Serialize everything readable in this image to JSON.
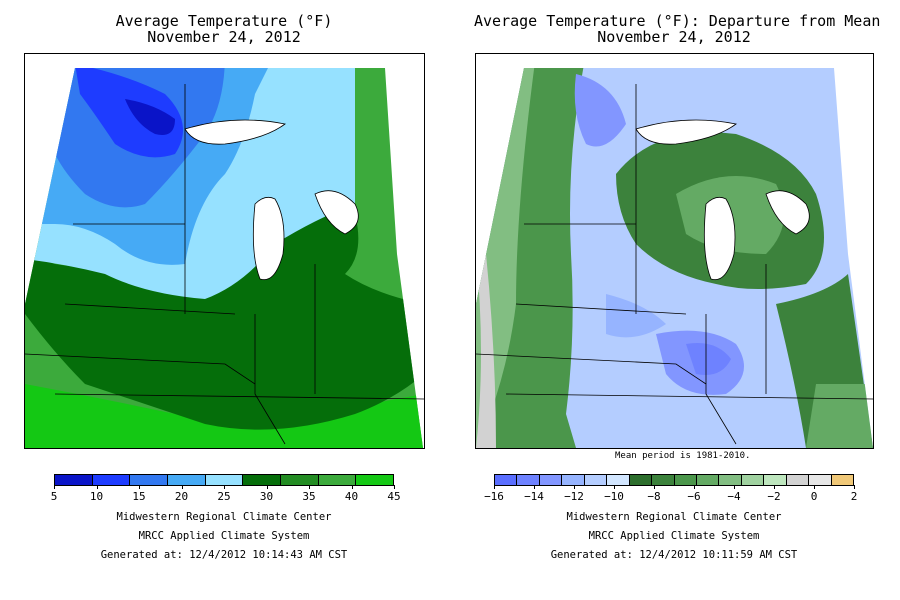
{
  "left": {
    "title_line1": "Average Temperature (°F)",
    "title_line2": "November 24, 2012",
    "legend": {
      "colors": [
        "#0a14c8",
        "#1e3cff",
        "#3278f0",
        "#46aaf5",
        "#96e1ff",
        "#056e0a",
        "#238c23",
        "#3caa3c",
        "#14c814"
      ],
      "ticks": [
        "5",
        "10",
        "15",
        "20",
        "25",
        "30",
        "35",
        "40",
        "45"
      ]
    },
    "credits": [
      "Midwestern Regional Climate Center",
      "MRCC Applied Climate System",
      "Generated at: 12/4/2012 10:14:43 AM CST"
    ]
  },
  "right": {
    "title_line1": "Average Temperature (°F): Departure from Mean",
    "title_line2": "November 24, 2012",
    "mean_note": "Mean period is 1981-2010.",
    "legend": {
      "colors": [
        "#5a6eff",
        "#6e82ff",
        "#8296ff",
        "#96b4ff",
        "#b4cdff",
        "#d2e6ff",
        "#2d6e2d",
        "#3c823c",
        "#4b964b",
        "#64aa64",
        "#82be82",
        "#a0d2a0",
        "#bee6be",
        "#d2d2d2",
        "#e6e6e6",
        "#f0c878"
      ],
      "ticks": [
        "−16",
        "−14",
        "−12",
        "−10",
        "−8",
        "−6",
        "−4",
        "−2",
        "0",
        "2"
      ]
    },
    "credits": [
      "Midwestern Regional Climate Center",
      "MRCC Applied Climate System",
      "Generated at: 12/4/2012 10:11:59 AM CST"
    ]
  }
}
